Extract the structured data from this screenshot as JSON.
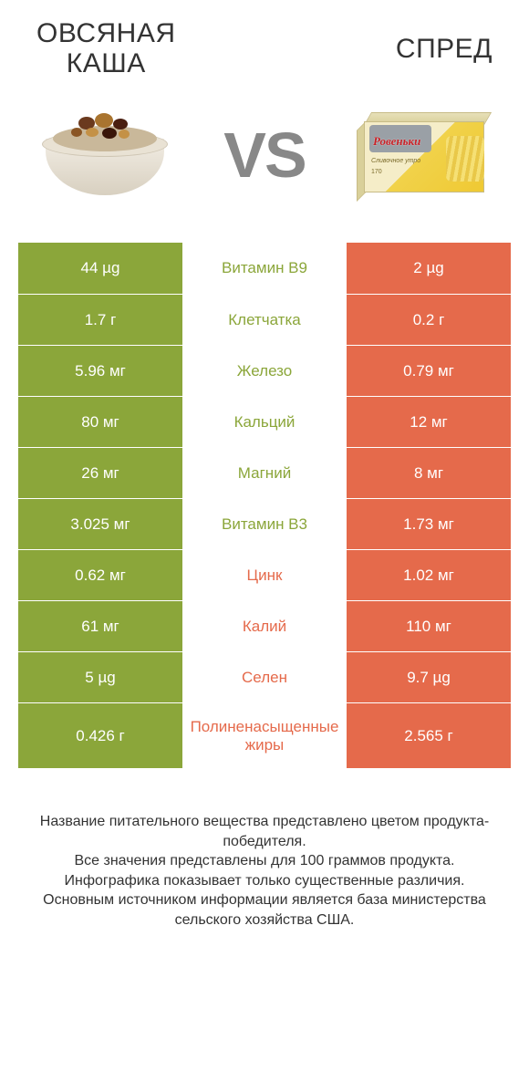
{
  "header": {
    "left_title": "ОВСЯНАЯ\nКАША",
    "right_title": "СПРЕД",
    "vs_label": "VS"
  },
  "colors": {
    "left": "#8ba63a",
    "right": "#e56a4b",
    "row_border": "#ffffff",
    "text_on_color": "#ffffff"
  },
  "package": {
    "brand": "Ровеньки",
    "subtitle": "Сливочное утро",
    "weight": "170"
  },
  "rows": [
    {
      "left": "44 µg",
      "label": "Витамин B9",
      "right": "2 µg",
      "winner": "left"
    },
    {
      "left": "1.7 г",
      "label": "Клетчатка",
      "right": "0.2 г",
      "winner": "left"
    },
    {
      "left": "5.96 мг",
      "label": "Железо",
      "right": "0.79 мг",
      "winner": "left"
    },
    {
      "left": "80 мг",
      "label": "Кальций",
      "right": "12 мг",
      "winner": "left"
    },
    {
      "left": "26 мг",
      "label": "Магний",
      "right": "8 мг",
      "winner": "left"
    },
    {
      "left": "3.025 мг",
      "label": "Витамин B3",
      "right": "1.73 мг",
      "winner": "left"
    },
    {
      "left": "0.62 мг",
      "label": "Цинк",
      "right": "1.02 мг",
      "winner": "right"
    },
    {
      "left": "61 мг",
      "label": "Калий",
      "right": "110 мг",
      "winner": "right"
    },
    {
      "left": "5 µg",
      "label": "Селен",
      "right": "9.7 µg",
      "winner": "right"
    },
    {
      "left": "0.426 г",
      "label": "Полиненасыщенные жиры",
      "right": "2.565 г",
      "winner": "right",
      "tall": true
    }
  ],
  "footer": "Название питательного вещества представлено цветом продукта-победителя.\nВсе значения представлены для 100 граммов продукта.\nИнфографика показывает только существенные различия.\nОсновным источником информации является база министерства сельского хозяйства США.",
  "style": {
    "title_fontsize": 30,
    "vs_fontsize": 70,
    "cell_fontsize": 17,
    "footer_fontsize": 16
  }
}
